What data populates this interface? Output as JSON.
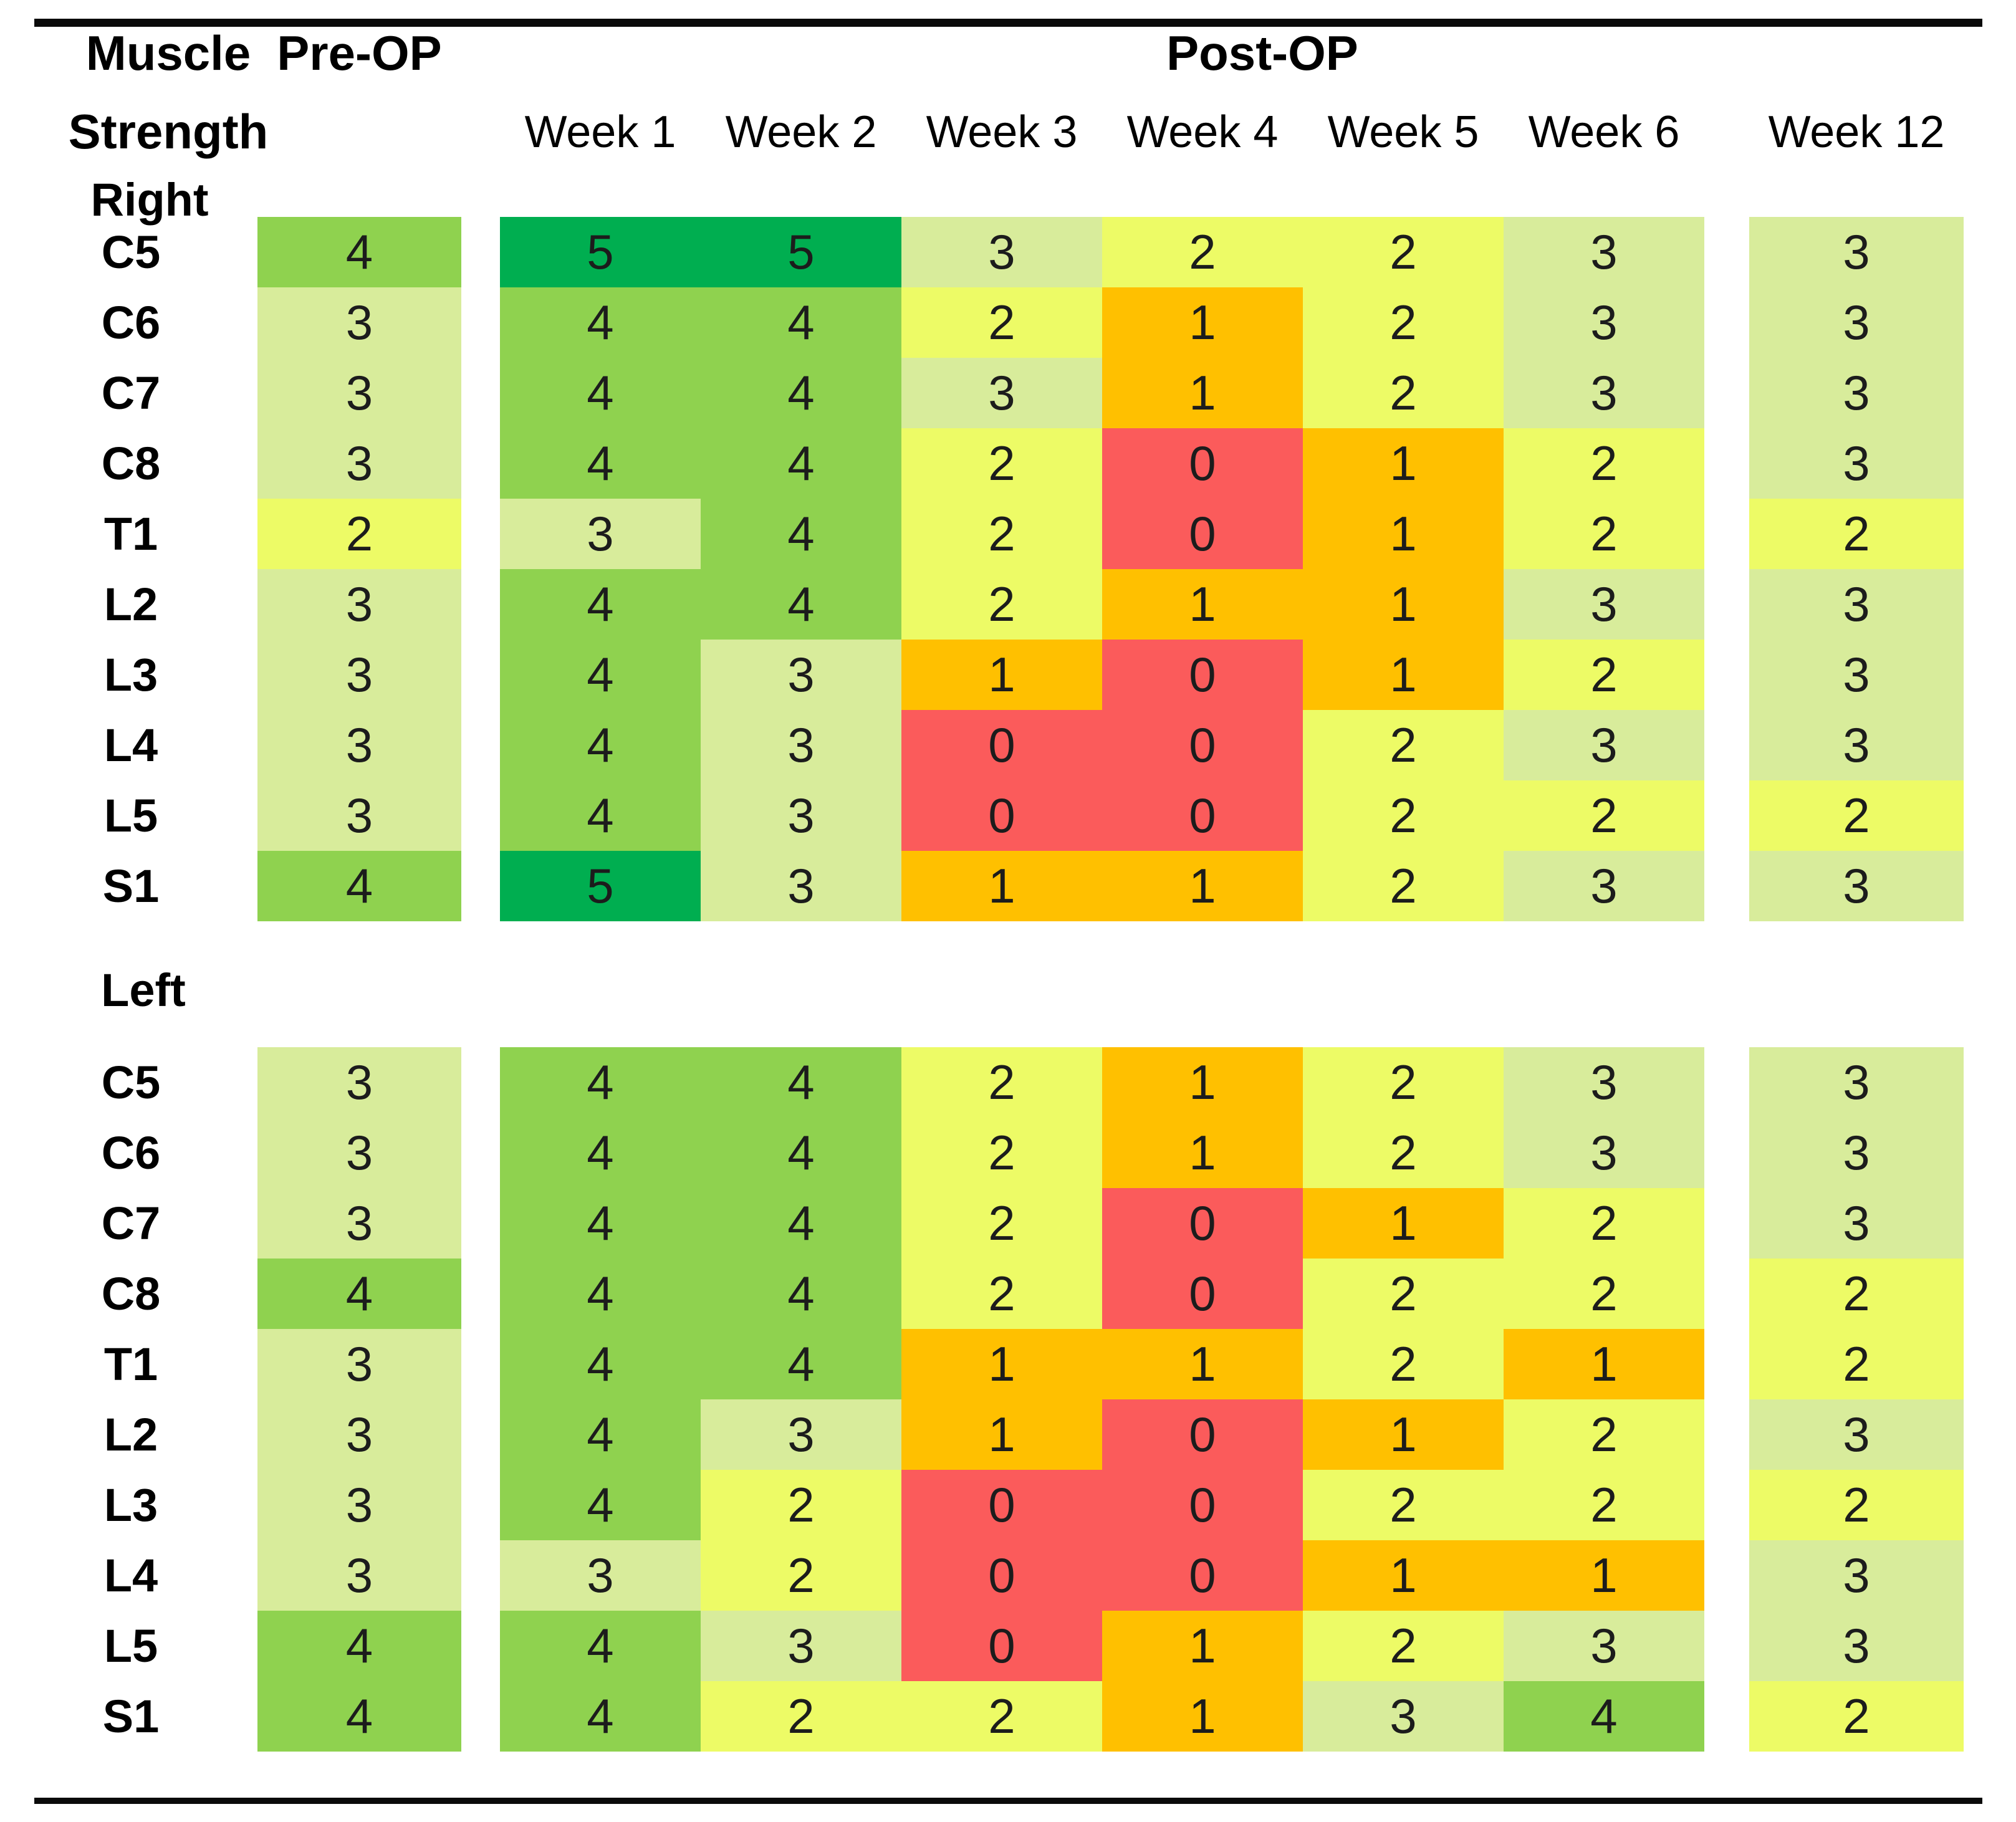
{
  "chart_data": {
    "type": "heatmap",
    "title_lines": [
      "Muscle",
      "Strength"
    ],
    "pre_label": "Pre-OP",
    "post_label": "Post-OP",
    "week_labels": [
      "Week 1",
      "Week 2",
      "Week 3",
      "Week 4",
      "Week 5",
      "Week 6",
      "Week 12"
    ],
    "columns": [
      "Pre-OP",
      "Week 1",
      "Week 2",
      "Week 3",
      "Week 4",
      "Week 5",
      "Week 6",
      "Week 12"
    ],
    "value_scale": {
      "min": 0,
      "max": 5
    },
    "value_colors": {
      "0": "#FB5B5B",
      "1": "#FFC000",
      "2": "#EDFB66",
      "3": "#D8EC9B",
      "4": "#8FD24F",
      "5": "#00AE50"
    },
    "sections": [
      {
        "side": "Right",
        "muscles": [
          "C5",
          "C6",
          "C7",
          "C8",
          "T1",
          "L2",
          "L3",
          "L4",
          "L5",
          "S1"
        ],
        "values": [
          [
            4,
            5,
            5,
            3,
            2,
            2,
            3,
            3
          ],
          [
            3,
            4,
            4,
            2,
            1,
            2,
            3,
            3
          ],
          [
            3,
            4,
            4,
            3,
            1,
            2,
            3,
            3
          ],
          [
            3,
            4,
            4,
            2,
            0,
            1,
            2,
            3
          ],
          [
            2,
            3,
            4,
            2,
            0,
            1,
            2,
            2
          ],
          [
            3,
            4,
            4,
            2,
            1,
            1,
            3,
            3
          ],
          [
            3,
            4,
            3,
            1,
            0,
            1,
            2,
            3
          ],
          [
            3,
            4,
            3,
            0,
            0,
            2,
            3,
            3
          ],
          [
            3,
            4,
            3,
            0,
            0,
            2,
            2,
            2
          ],
          [
            4,
            5,
            3,
            1,
            1,
            2,
            3,
            3
          ]
        ]
      },
      {
        "side": "Left",
        "muscles": [
          "C5",
          "C6",
          "C7",
          "C8",
          "T1",
          "L2",
          "L3",
          "L4",
          "L5",
          "S1"
        ],
        "values": [
          [
            3,
            4,
            4,
            2,
            1,
            2,
            3,
            3
          ],
          [
            3,
            4,
            4,
            2,
            1,
            2,
            3,
            3
          ],
          [
            3,
            4,
            4,
            2,
            0,
            1,
            2,
            3
          ],
          [
            4,
            4,
            4,
            2,
            0,
            2,
            2,
            2
          ],
          [
            3,
            4,
            4,
            1,
            1,
            2,
            1,
            2
          ],
          [
            3,
            4,
            3,
            1,
            0,
            1,
            2,
            3
          ],
          [
            3,
            4,
            2,
            0,
            0,
            2,
            2,
            2
          ],
          [
            3,
            3,
            2,
            0,
            0,
            1,
            1,
            3
          ],
          [
            4,
            4,
            3,
            0,
            1,
            2,
            3,
            3
          ],
          [
            4,
            4,
            2,
            2,
            1,
            3,
            4,
            2
          ]
        ]
      }
    ]
  }
}
